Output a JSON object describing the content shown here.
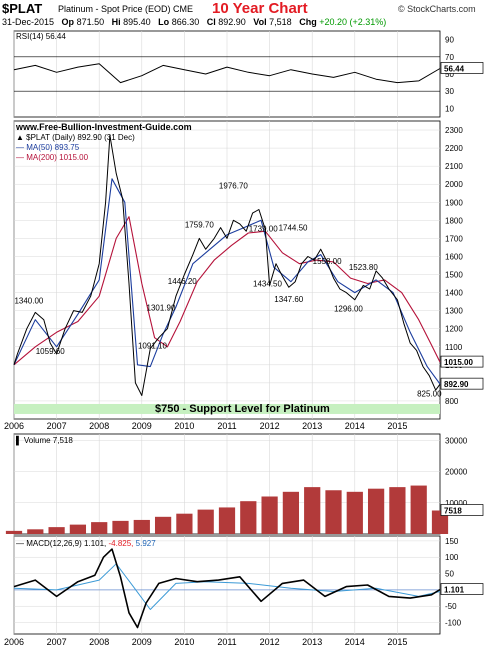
{
  "header": {
    "symbol": "$PLAT",
    "name": "Platinum  - Spot Price (EOD)  CME",
    "ten_year": "10 Year Chart",
    "source": "© StockCharts.com",
    "date": "31-Dec-2015",
    "open_label": "Op",
    "open_value": "871.50",
    "high_label": "Hi",
    "high_value": "895.40",
    "low_label": "Lo",
    "low_value": "866.30",
    "close_label": "Cl",
    "close_value": "892.90",
    "vol_label": "Vol",
    "vol_value": "7,518",
    "chg_label": "Chg",
    "chg_value": "+20.20 (+2.31%)"
  },
  "colors": {
    "price": "#000000",
    "ma50": "#1c3d9e",
    "ma200": "#b5123a",
    "volume": "#b23a3a",
    "support_band": "#c6f0c0",
    "title_red": "#e31b23",
    "grid": "#d9d9d9"
  },
  "chart_data": [
    {
      "type": "line",
      "panel": "rsi",
      "legend": "RSI(14) 56.44",
      "current_label": "56.44",
      "ylim": [
        0,
        100
      ],
      "y_ticks": [
        "90",
        "70",
        "50",
        "30",
        "10"
      ],
      "reference_lines": [
        70,
        30
      ],
      "x": [
        2006.0,
        2006.5,
        2007.0,
        2007.5,
        2008.0,
        2008.5,
        2009.0,
        2009.5,
        2010.0,
        2010.5,
        2011.0,
        2011.5,
        2012.0,
        2012.5,
        2013.0,
        2013.5,
        2014.0,
        2014.5,
        2015.0,
        2015.5,
        2016.0
      ],
      "values": [
        55,
        60,
        52,
        58,
        62,
        40,
        48,
        60,
        55,
        50,
        58,
        52,
        48,
        55,
        50,
        46,
        52,
        44,
        40,
        42,
        56.44
      ]
    },
    {
      "type": "line",
      "panel": "price",
      "legend_main": "$PLAT (Daily) 892.90 (31 Dec)",
      "legend_ma50": "MA(50) 893.75",
      "legend_ma200": "MA(200) 1015.00",
      "watermark": "www.Free-Bullion-Investment-Guide.com",
      "support_text": "$750   -   Support Level for Platinum",
      "support_level": 750,
      "ylim": [
        700,
        2350
      ],
      "y_ticks": [
        800,
        900,
        1000,
        1100,
        1200,
        1300,
        1400,
        1500,
        1600,
        1700,
        1800,
        1900,
        2000,
        2100,
        2200,
        2300
      ],
      "last_price_label": "892.90",
      "ma200_label": "1015.00",
      "x_ticks": [
        "2006",
        "2007",
        "2008",
        "2009",
        "2010",
        "2011",
        "2012",
        "2013",
        "2014",
        "2015"
      ],
      "price_x": [
        2006.0,
        2006.08,
        2006.3,
        2006.5,
        2006.7,
        2006.85,
        2007.0,
        2007.2,
        2007.4,
        2007.6,
        2007.8,
        2008.0,
        2008.15,
        2008.25,
        2008.4,
        2008.55,
        2008.7,
        2008.85,
        2009.0,
        2009.2,
        2009.4,
        2009.6,
        2009.8,
        2010.0,
        2010.2,
        2010.35,
        2010.5,
        2010.7,
        2010.85,
        2011.0,
        2011.15,
        2011.3,
        2011.45,
        2011.6,
        2011.75,
        2011.9,
        2012.0,
        2012.15,
        2012.3,
        2012.45,
        2012.6,
        2012.75,
        2012.9,
        2013.05,
        2013.2,
        2013.35,
        2013.5,
        2013.65,
        2013.8,
        2014.0,
        2014.2,
        2014.35,
        2014.5,
        2014.65,
        2014.8,
        2015.0,
        2015.15,
        2015.3,
        2015.45,
        2015.6,
        2015.75,
        2015.9,
        2016.0
      ],
      "price_values": [
        1000,
        1060,
        1200,
        1290,
        1250,
        1120,
        1060,
        1200,
        1300,
        1290,
        1380,
        1560,
        1900,
        2270,
        2060,
        1920,
        1450,
        900,
        830,
        1090,
        1150,
        1200,
        1380,
        1500,
        1610,
        1700,
        1640,
        1700,
        1760,
        1700,
        1800,
        1780,
        1740,
        1840,
        1860,
        1750,
        1440,
        1560,
        1490,
        1430,
        1460,
        1560,
        1600,
        1580,
        1640,
        1570,
        1480,
        1420,
        1400,
        1360,
        1440,
        1420,
        1520,
        1480,
        1420,
        1360,
        1230,
        1120,
        1080,
        990,
        940,
        860,
        892.9
      ],
      "ma50_x": [
        2006.0,
        2006.5,
        2007.0,
        2007.5,
        2008.0,
        2008.3,
        2008.6,
        2008.9,
        2009.2,
        2009.5,
        2009.8,
        2010.2,
        2010.6,
        2011.0,
        2011.4,
        2011.8,
        2012.1,
        2012.5,
        2012.9,
        2013.2,
        2013.6,
        2014.0,
        2014.5,
        2014.9,
        2015.3,
        2015.7,
        2016.0
      ],
      "ma50_values": [
        1000,
        1250,
        1100,
        1280,
        1470,
        2030,
        1900,
        1000,
        990,
        1170,
        1320,
        1560,
        1640,
        1720,
        1760,
        1800,
        1540,
        1460,
        1570,
        1610,
        1460,
        1400,
        1470,
        1400,
        1180,
        990,
        893.75
      ],
      "ma200_x": [
        2006.0,
        2006.5,
        2007.0,
        2007.5,
        2008.0,
        2008.4,
        2008.7,
        2009.0,
        2009.3,
        2009.6,
        2009.9,
        2010.3,
        2010.7,
        2011.1,
        2011.5,
        2011.9,
        2012.3,
        2012.7,
        2013.1,
        2013.5,
        2013.9,
        2014.3,
        2014.7,
        2015.1,
        2015.5,
        2015.8,
        2016.0
      ],
      "ma200_values": [
        1000,
        1100,
        1180,
        1240,
        1380,
        1700,
        1820,
        1450,
        1150,
        1100,
        1240,
        1460,
        1580,
        1660,
        1730,
        1740,
        1620,
        1560,
        1580,
        1570,
        1480,
        1450,
        1470,
        1400,
        1250,
        1110,
        1015.0
      ],
      "annotations": [
        {
          "text": "1340.00",
          "x": 2006.35,
          "y": 1340
        },
        {
          "text": "1059.60",
          "x": 2006.85,
          "y": 1059.6
        },
        {
          "text": "1091.10",
          "x": 2009.25,
          "y": 1091.1
        },
        {
          "text": "1301.90",
          "x": 2009.45,
          "y": 1301.9
        },
        {
          "text": "1446.20",
          "x": 2009.95,
          "y": 1446.2
        },
        {
          "text": "1759.70",
          "x": 2010.35,
          "y": 1759.7
        },
        {
          "text": "1976.70",
          "x": 2011.15,
          "y": 1976.7
        },
        {
          "text": "1739.00",
          "x": 2011.85,
          "y": 1739.0
        },
        {
          "text": "1744.50",
          "x": 2012.55,
          "y": 1744.5
        },
        {
          "text": "1434.50",
          "x": 2011.95,
          "y": 1434.5
        },
        {
          "text": "1347.60",
          "x": 2012.45,
          "y": 1347.6
        },
        {
          "text": "1558.00",
          "x": 2013.35,
          "y": 1558.0
        },
        {
          "text": "1523.80",
          "x": 2014.2,
          "y": 1523.8
        },
        {
          "text": "1296.00",
          "x": 2013.85,
          "y": 1296.0
        },
        {
          "text": "825.00",
          "x": 2015.75,
          "y": 825.0
        }
      ]
    },
    {
      "type": "bar",
      "panel": "volume",
      "legend": "Volume 7,518",
      "current_label": "7518",
      "ylim": [
        0,
        32000
      ],
      "y_ticks": [
        "30000",
        "20000",
        "10000"
      ],
      "x": [
        2006.0,
        2006.5,
        2007.0,
        2007.5,
        2008.0,
        2008.5,
        2009.0,
        2009.5,
        2010.0,
        2010.5,
        2011.0,
        2011.5,
        2012.0,
        2012.5,
        2013.0,
        2013.5,
        2014.0,
        2014.5,
        2015.0,
        2015.5,
        2016.0
      ],
      "values": [
        1000,
        1500,
        2200,
        3000,
        3800,
        4200,
        4500,
        5500,
        6500,
        7800,
        8500,
        10500,
        12000,
        13500,
        15000,
        14000,
        13500,
        14500,
        15000,
        15500,
        7518
      ]
    },
    {
      "type": "line",
      "panel": "macd",
      "legend_label": "MACD(12,26,9)",
      "macd_value": "1.101",
      "signal_value": "-4.825",
      "hist_value": "5.927",
      "current_label": "1.101",
      "ylim": [
        -135,
        165
      ],
      "y_ticks": [
        150,
        100,
        50,
        0,
        -50,
        -100
      ],
      "macd_x": [
        2006.0,
        2006.5,
        2007.0,
        2007.5,
        2007.9,
        2008.1,
        2008.3,
        2008.5,
        2008.7,
        2008.9,
        2009.1,
        2009.4,
        2009.8,
        2010.3,
        2010.8,
        2011.3,
        2011.8,
        2012.3,
        2012.8,
        2013.3,
        2013.8,
        2014.3,
        2014.8,
        2015.3,
        2015.8,
        2016.0
      ],
      "macd_values": [
        10,
        30,
        -20,
        25,
        45,
        100,
        125,
        40,
        -70,
        -115,
        -40,
        20,
        35,
        25,
        30,
        40,
        -35,
        20,
        30,
        -20,
        10,
        15,
        -20,
        -25,
        -15,
        1.101
      ],
      "signal_x": [
        2006.0,
        2007.0,
        2008.0,
        2008.4,
        2008.8,
        2009.2,
        2009.8,
        2010.5,
        2011.5,
        2012.5,
        2013.5,
        2014.5,
        2015.5,
        2016.0
      ],
      "signal_values": [
        5,
        0,
        30,
        80,
        10,
        -60,
        20,
        25,
        20,
        5,
        -5,
        5,
        -20,
        -4.825
      ]
    }
  ]
}
